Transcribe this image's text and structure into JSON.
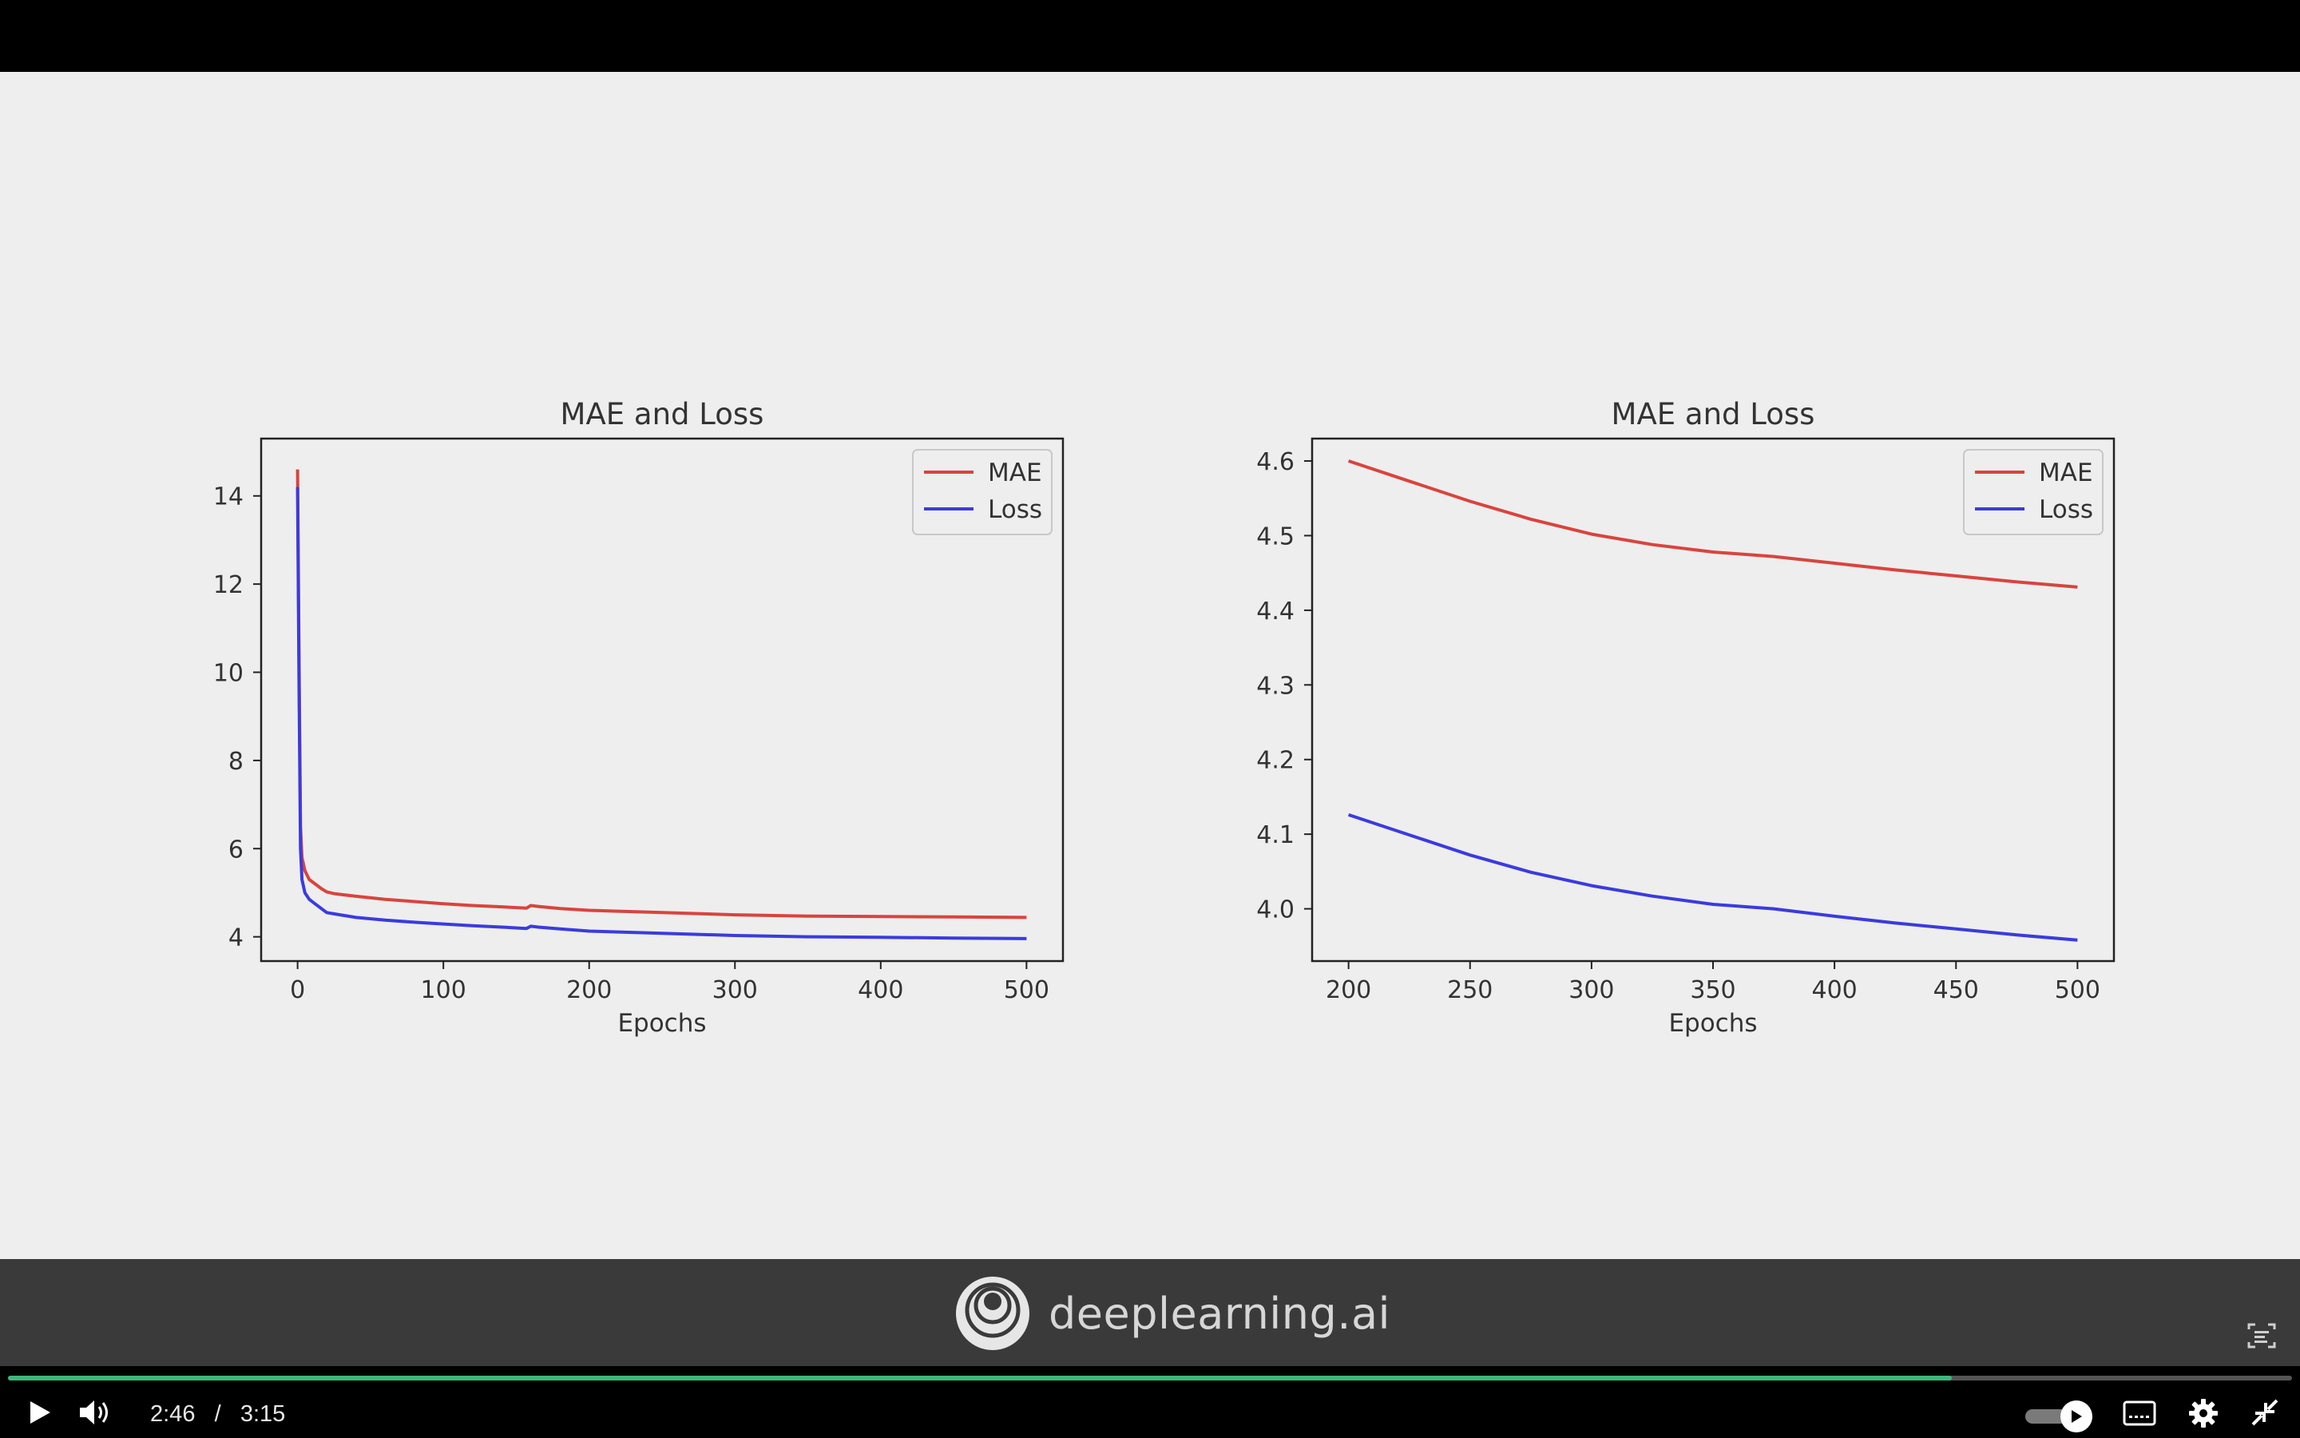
{
  "slide": {
    "charts_label": "MAE and Loss"
  },
  "chart_data": [
    {
      "type": "line",
      "title": "MAE and Loss",
      "xlabel": "Epochs",
      "ylabel": "",
      "xlim": [
        -25,
        525
      ],
      "ylim": [
        3.45,
        15.3
      ],
      "xticks": [
        0,
        100,
        200,
        300,
        400,
        500
      ],
      "yticks": [
        4,
        6,
        8,
        10,
        12,
        14
      ],
      "legend": "top-right",
      "series": [
        {
          "name": "MAE",
          "color": "#d9443e",
          "x": [
            0,
            1,
            2,
            3,
            5,
            8,
            12,
            16,
            20,
            25,
            40,
            60,
            80,
            100,
            120,
            140,
            157,
            160,
            165,
            180,
            200,
            250,
            300,
            350,
            400,
            450,
            500
          ],
          "y": [
            14.6,
            10.2,
            6.5,
            5.8,
            5.5,
            5.3,
            5.2,
            5.1,
            5.02,
            4.98,
            4.92,
            4.85,
            4.8,
            4.75,
            4.71,
            4.68,
            4.65,
            4.71,
            4.69,
            4.64,
            4.6,
            4.55,
            4.5,
            4.47,
            4.46,
            4.45,
            4.44
          ]
        },
        {
          "name": "Loss",
          "color": "#3b3be0",
          "x": [
            0,
            1,
            2,
            3,
            5,
            8,
            12,
            16,
            20,
            25,
            40,
            60,
            80,
            100,
            120,
            140,
            157,
            160,
            165,
            180,
            200,
            250,
            300,
            350,
            400,
            450,
            500
          ],
          "y": [
            14.2,
            9.6,
            6.0,
            5.3,
            5.0,
            4.85,
            4.75,
            4.65,
            4.55,
            4.52,
            4.44,
            4.38,
            4.33,
            4.29,
            4.25,
            4.22,
            4.19,
            4.24,
            4.22,
            4.18,
            4.13,
            4.08,
            4.03,
            4.0,
            3.99,
            3.97,
            3.96
          ]
        }
      ]
    },
    {
      "type": "line",
      "title": "MAE and Loss",
      "xlabel": "Epochs",
      "ylabel": "",
      "xlim": [
        185,
        515
      ],
      "ylim": [
        3.93,
        4.63
      ],
      "xticks": [
        200,
        250,
        300,
        350,
        400,
        450,
        500
      ],
      "yticks": [
        4.0,
        4.1,
        4.2,
        4.3,
        4.4,
        4.5,
        4.6
      ],
      "legend": "top-right",
      "series": [
        {
          "name": "MAE",
          "color": "#d9443e",
          "x": [
            200,
            225,
            250,
            275,
            300,
            325,
            350,
            375,
            400,
            425,
            450,
            475,
            500
          ],
          "y": [
            4.6,
            4.573,
            4.546,
            4.522,
            4.502,
            4.488,
            4.478,
            4.472,
            4.463,
            4.454,
            4.446,
            4.438,
            4.431
          ]
        },
        {
          "name": "Loss",
          "color": "#3b3be0",
          "x": [
            200,
            225,
            250,
            275,
            300,
            325,
            350,
            375,
            400,
            425,
            450,
            475,
            500
          ],
          "y": [
            4.126,
            4.099,
            4.072,
            4.049,
            4.031,
            4.017,
            4.006,
            4.0,
            3.99,
            3.981,
            3.973,
            3.965,
            3.958
          ]
        }
      ]
    }
  ],
  "brand": {
    "name": "deeplearning.ai",
    "logo_icon": "deeplearning-logo-icon"
  },
  "player": {
    "current_time": "2:46",
    "separator": "/",
    "duration": "3:15",
    "progress": 0.851,
    "accent_color": "#3fb67b",
    "buttons": [
      "play-icon",
      "volume-icon",
      "autoplay-toggle",
      "captions-icon",
      "settings-gear-icon",
      "exit-fullscreen-icon",
      "transcript-icon"
    ]
  }
}
